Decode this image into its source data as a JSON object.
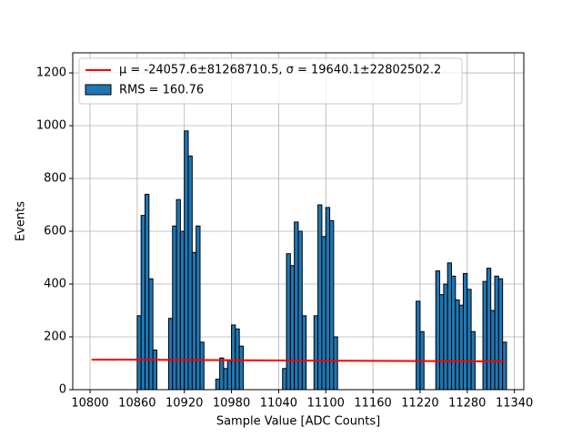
{
  "chart_data": {
    "type": "histogram",
    "xlabel": "Sample Value [ADC Counts]",
    "ylabel": "Events",
    "bins": [
      10855,
      10860,
      10865,
      10870,
      10875,
      10880,
      10885,
      10890,
      10895,
      10900,
      10905,
      10910,
      10915,
      10920,
      10925,
      10930,
      10935,
      10940,
      10945,
      10950,
      10955,
      10960,
      10965,
      10970,
      10975,
      10980,
      10985,
      10990,
      10995,
      11000,
      11005,
      11010,
      11015,
      11020,
      11025,
      11030,
      11035,
      11040,
      11045,
      11050,
      11055,
      11060,
      11065,
      11070,
      11075,
      11080,
      11085,
      11090,
      11095,
      11100,
      11105,
      11110,
      11115,
      11120,
      11125,
      11130,
      11135,
      11140,
      11145,
      11150,
      11155,
      11160,
      11165,
      11170,
      11175,
      11180,
      11185,
      11190,
      11195,
      11200,
      11205,
      11210,
      11215,
      11220,
      11225,
      11230,
      11235,
      11240,
      11245,
      11250,
      11255,
      11260,
      11265,
      11270,
      11275,
      11280,
      11285,
      11290,
      11295,
      11300,
      11305,
      11310,
      11315,
      11320,
      11325,
      11330
    ],
    "counts": [
      0,
      280,
      660,
      740,
      420,
      150,
      0,
      0,
      0,
      270,
      620,
      720,
      600,
      980,
      885,
      520,
      620,
      180,
      0,
      0,
      0,
      40,
      120,
      80,
      110,
      245,
      230,
      165,
      0,
      0,
      0,
      0,
      0,
      0,
      0,
      0,
      0,
      0,
      80,
      515,
      470,
      635,
      600,
      280,
      0,
      0,
      280,
      700,
      580,
      690,
      640,
      200,
      0,
      0,
      0,
      0,
      0,
      0,
      0,
      0,
      0,
      0,
      0,
      0,
      0,
      0,
      0,
      0,
      0,
      0,
      0,
      0,
      335,
      220,
      0,
      0,
      0,
      450,
      360,
      400,
      480,
      430,
      340,
      320,
      440,
      380,
      220,
      0,
      0,
      410,
      460,
      300,
      430,
      420,
      180
    ],
    "color": "#1f77b4",
    "edgecolor": "#000000",
    "hist_label": "RMS = 160.76",
    "fit": {
      "name": "μ = -24057.6±81268710.5, σ = 19640.1±22802502.2",
      "color": "#ff0000",
      "x": [
        10802,
        11327
      ],
      "y": [
        114,
        107
      ]
    },
    "xlim": [
      10778,
      11352
    ],
    "ylim": [
      0,
      1276
    ],
    "xticks": [
      10800,
      10860,
      10920,
      10980,
      11040,
      11100,
      11160,
      11220,
      11280,
      11340
    ],
    "yticks": [
      0,
      200,
      400,
      600,
      800,
      1000,
      1200
    ],
    "grid": true,
    "legend": "upper left"
  }
}
